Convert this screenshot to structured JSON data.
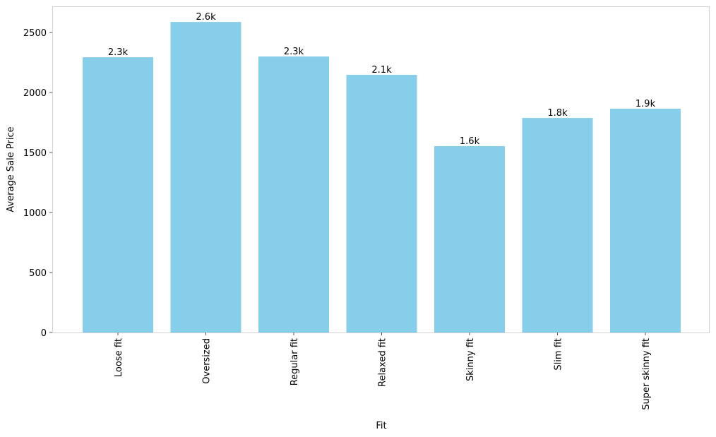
{
  "chart_data": {
    "type": "bar",
    "x_label": "Fit",
    "y_label": "Average Sale Price",
    "categories": [
      "Loose fit",
      "Oversized",
      "Regular fit",
      "Relaxed fit",
      "Skinny fit",
      "Slim fit",
      "Super skinny fit"
    ],
    "values": [
      2294,
      2588,
      2300,
      2147,
      1553,
      1788,
      1865
    ],
    "value_labels": [
      "2.3k",
      "2.6k",
      "2.3k",
      "2.1k",
      "1.6k",
      "1.8k",
      "1.9k"
    ],
    "color": "#87ceeb",
    "ylim": [
      0,
      2718
    ],
    "yticks": [
      0,
      500,
      1000,
      1500,
      2000,
      2500
    ],
    "grid": false
  }
}
